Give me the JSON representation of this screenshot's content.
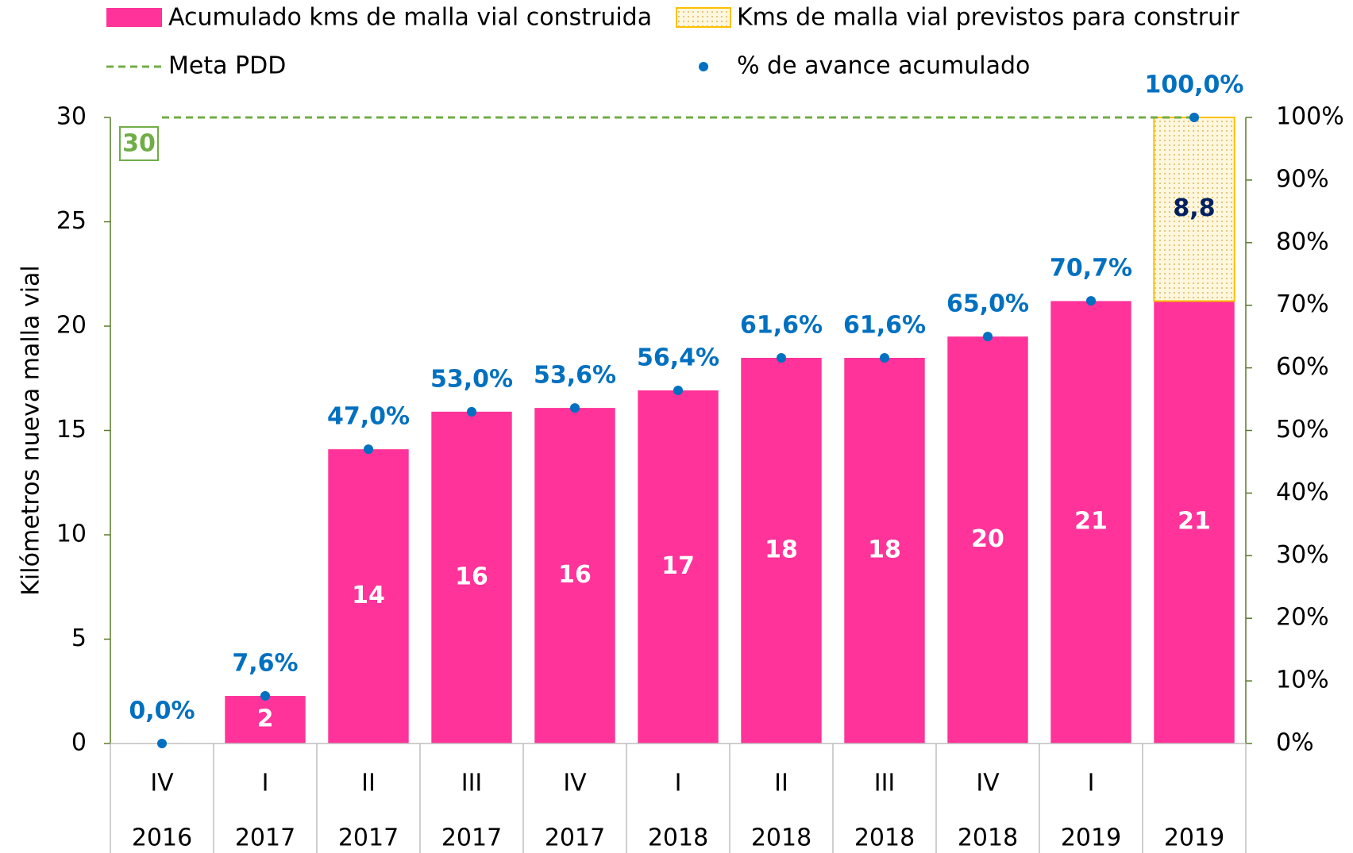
{
  "chart_data": {
    "type": "bar",
    "categories": [
      "IV",
      "I",
      "II",
      "III",
      "IV",
      "I",
      "II",
      "III",
      "IV",
      "I",
      null
    ],
    "category_years": [
      "2016",
      "2017",
      "2017",
      "2017",
      "2017",
      "2018",
      "2018",
      "2018",
      "2018",
      "2019",
      "2019"
    ],
    "ylabel": "Kilómetros nueva malla vial",
    "ylim": [
      0,
      30
    ],
    "yticks": [
      0,
      5,
      10,
      15,
      20,
      25,
      30
    ],
    "y2lim": [
      0,
      100
    ],
    "y2ticks": [
      {
        "value": 0,
        "label": "0%"
      },
      {
        "value": 10,
        "label": "10%"
      },
      {
        "value": 20,
        "label": "20%"
      },
      {
        "value": 30,
        "label": "30%"
      },
      {
        "value": 40,
        "label": "40%"
      },
      {
        "value": 50,
        "label": "50%"
      },
      {
        "value": 60,
        "label": "60%"
      },
      {
        "value": 70,
        "label": "70%"
      },
      {
        "value": 80,
        "label": "80%"
      },
      {
        "value": 90,
        "label": "90%"
      },
      {
        "value": 100,
        "label": "100%"
      }
    ],
    "annotation": "30",
    "series": [
      {
        "name": "Acumulado kms de malla vial construida",
        "type": "bar",
        "color": "#ff3399",
        "values": [
          0,
          2.28,
          14.1,
          15.9,
          16.08,
          16.92,
          18.48,
          18.48,
          19.5,
          21.2,
          21.2
        ],
        "value_labels": [
          null,
          "2",
          "14",
          "16",
          "16",
          "17",
          "18",
          "18",
          "20",
          "21",
          "21"
        ]
      },
      {
        "name": "Kms de malla vial previstos para construir",
        "type": "stacked_bar",
        "color": "#ffc000",
        "values": [
          null,
          null,
          null,
          null,
          null,
          null,
          null,
          null,
          null,
          null,
          8.8
        ],
        "value_labels": [
          null,
          null,
          null,
          null,
          null,
          null,
          null,
          null,
          null,
          null,
          "8,8"
        ]
      },
      {
        "name": "Meta PDD",
        "type": "line",
        "color": "#70ad47",
        "values": [
          30,
          30,
          30,
          30,
          30,
          30,
          30,
          30,
          30,
          30,
          30
        ]
      },
      {
        "name": "% de avance acumulado",
        "type": "scatter",
        "axis": "y2",
        "color": "#0070c0",
        "values": [
          0,
          7.6,
          47.0,
          53.0,
          53.6,
          56.4,
          61.6,
          61.6,
          65.0,
          70.7,
          100.0
        ],
        "value_labels": [
          "0,0%",
          "7,6%",
          "47,0%",
          "53,0%",
          "53,6%",
          "56,4%",
          "61,6%",
          "61,6%",
          "65,0%",
          "70,7%",
          "100,0%"
        ]
      }
    ]
  }
}
